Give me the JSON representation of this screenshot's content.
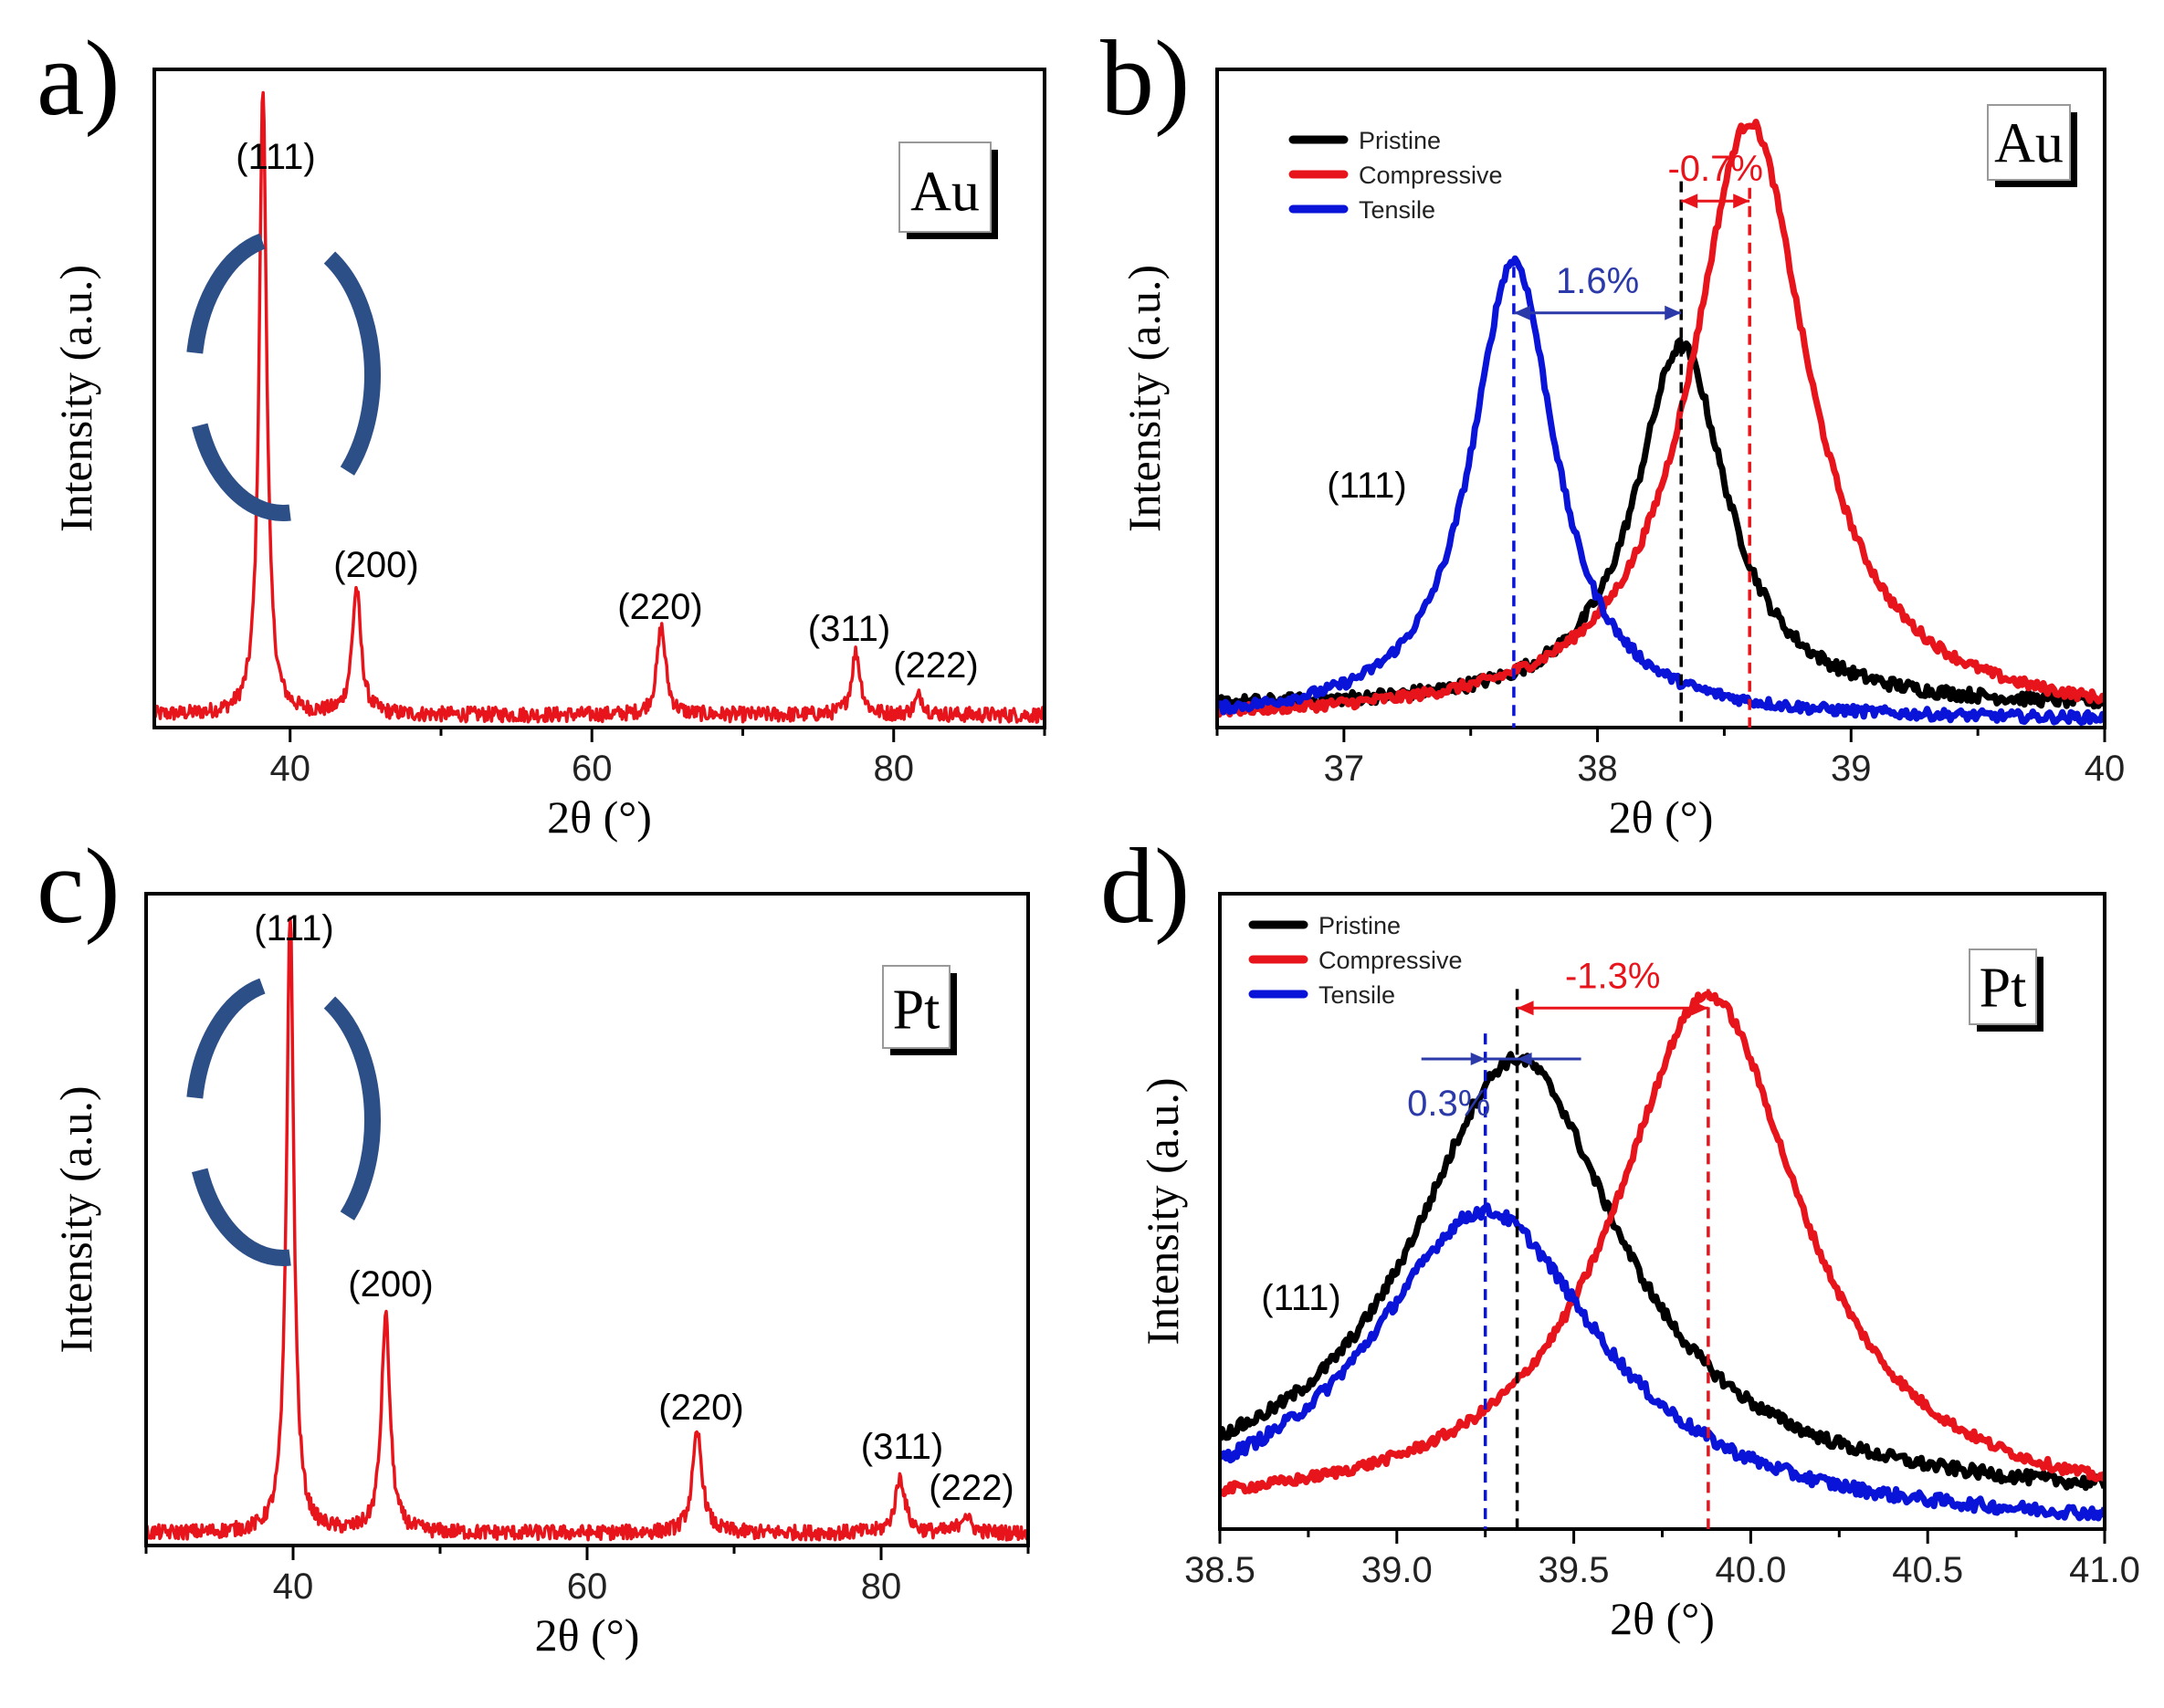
{
  "chart_data": [
    {
      "panel": "a)",
      "type": "line",
      "element": "Au",
      "xlabel": "2θ (°)",
      "ylabel": "Intensity (a.u.)",
      "xlim": [
        31,
        90
      ],
      "ylim": [
        0,
        1.05
      ],
      "xticks": [
        40,
        60,
        80
      ],
      "xtick_labels": [
        "40",
        "60",
        "80"
      ],
      "series": [
        {
          "name": "Au",
          "color": "#e8141b",
          "baseline": 0.02,
          "noise": 0.012,
          "peaks": [
            {
              "label": "(111)",
              "x": 38.2,
              "h": 1.0,
              "w": 0.3
            },
            {
              "label": "(200)",
              "x": 44.4,
              "h": 0.2,
              "w": 0.35
            },
            {
              "label": "(220)",
              "x": 64.6,
              "h": 0.14,
              "w": 0.35
            },
            {
              "label": "(311)",
              "x": 77.5,
              "h": 0.1,
              "w": 0.35
            },
            {
              "label": "(222)",
              "x": 81.7,
              "h": 0.03,
              "w": 0.35
            }
          ]
        }
      ]
    },
    {
      "panel": "b)",
      "type": "line",
      "element": "Au",
      "xlabel": "2θ (°)",
      "ylabel": "Intensity (a.u.)",
      "xlim": [
        36.5,
        40
      ],
      "ylim": [
        0,
        1
      ],
      "xticks": [
        37,
        38,
        39,
        40
      ],
      "xtick_labels": [
        "37",
        "38",
        "39",
        "40"
      ],
      "legend": "top-left",
      "peak_label": "(111)",
      "series": [
        {
          "name": "Pristine",
          "color": "#000000",
          "baseline": 0.03,
          "noise": 0.01,
          "peaks": [
            {
              "x": 38.33,
              "h": 0.55,
              "w": 0.22
            }
          ]
        },
        {
          "name": "Compressive",
          "color": "#e8141b",
          "baseline": 0.01,
          "noise": 0.008,
          "peaks": [
            {
              "x": 38.6,
              "h": 0.91,
              "w": 0.28
            }
          ]
        },
        {
          "name": "Tensile",
          "color": "#0a14d8",
          "baseline": 0.01,
          "noise": 0.008,
          "peaks": [
            {
              "x": 37.67,
              "h": 0.7,
              "w": 0.2
            }
          ]
        }
      ],
      "annotations": [
        {
          "text": "-0.7%",
          "color": "#e8141b",
          "from": 38.33,
          "to": 38.6,
          "y": 0.8
        },
        {
          "text": "1.6%",
          "color": "#2b3aa8",
          "from": 37.67,
          "to": 38.33,
          "y": 0.63
        }
      ],
      "markers": [
        {
          "x": 37.67,
          "color": "#0a14d8",
          "top": 0.7
        },
        {
          "x": 38.33,
          "color": "#000000",
          "top": 0.83
        },
        {
          "x": 38.6,
          "color": "#e8141b",
          "top": 0.82
        }
      ]
    },
    {
      "panel": "c)",
      "type": "line",
      "element": "Pt",
      "xlabel": "2θ (°)",
      "ylabel": "Intensity (a.u.)",
      "xlim": [
        30,
        90
      ],
      "ylim": [
        0,
        1.05
      ],
      "xticks": [
        40,
        60,
        80
      ],
      "xtick_labels": [
        "40",
        "60",
        "80"
      ],
      "series": [
        {
          "name": "Pt",
          "color": "#e8141b",
          "baseline": 0.02,
          "noise": 0.012,
          "peaks": [
            {
              "label": "(111)",
              "x": 39.8,
              "h": 1.0,
              "w": 0.3
            },
            {
              "label": "(200)",
              "x": 46.3,
              "h": 0.35,
              "w": 0.35
            },
            {
              "label": "(220)",
              "x": 67.5,
              "h": 0.16,
              "w": 0.4
            },
            {
              "label": "(311)",
              "x": 81.3,
              "h": 0.09,
              "w": 0.4
            },
            {
              "label": "(222)",
              "x": 85.7,
              "h": 0.03,
              "w": 0.4
            }
          ]
        }
      ]
    },
    {
      "panel": "d)",
      "type": "line",
      "element": "Pt",
      "xlabel": "2θ (°)",
      "ylabel": "Intensity (a.u.)",
      "xlim": [
        38.5,
        41
      ],
      "ylim": [
        0,
        1
      ],
      "xticks": [
        38.5,
        39.0,
        39.5,
        40.0,
        40.5,
        41.0
      ],
      "xtick_labels": [
        "38.5",
        "39.0",
        "39.5",
        "40.0",
        "40.5",
        "41.0"
      ],
      "legend": "top-left",
      "peak_label": "(111)",
      "series": [
        {
          "name": "Pristine",
          "color": "#000000",
          "baseline": 0.04,
          "noise": 0.01,
          "peaks": [
            {
              "x": 39.34,
              "h": 0.7,
              "w": 0.36
            }
          ]
        },
        {
          "name": "Compressive",
          "color": "#e8141b",
          "baseline": 0.02,
          "noise": 0.008,
          "peaks": [
            {
              "x": 39.88,
              "h": 0.82,
              "w": 0.32
            }
          ]
        },
        {
          "name": "Tensile",
          "color": "#0a14d8",
          "baseline": 0.0,
          "noise": 0.01,
          "peaks": [
            {
              "x": 39.25,
              "h": 0.5,
              "w": 0.4
            }
          ]
        }
      ],
      "annotations": [
        {
          "text": "-1.3%",
          "color": "#e8141b",
          "from": 39.34,
          "to": 39.88,
          "y": 0.82
        },
        {
          "text": "0.3%",
          "color": "#2b3aa8",
          "from": 39.25,
          "to": 39.34,
          "y": 0.74,
          "inward": true
        }
      ],
      "markers": [
        {
          "x": 39.25,
          "color": "#0a14d8",
          "top": 0.78
        },
        {
          "x": 39.34,
          "color": "#000000",
          "top": 0.85
        },
        {
          "x": 39.88,
          "color": "#e8141b",
          "top": 0.85
        }
      ]
    }
  ]
}
